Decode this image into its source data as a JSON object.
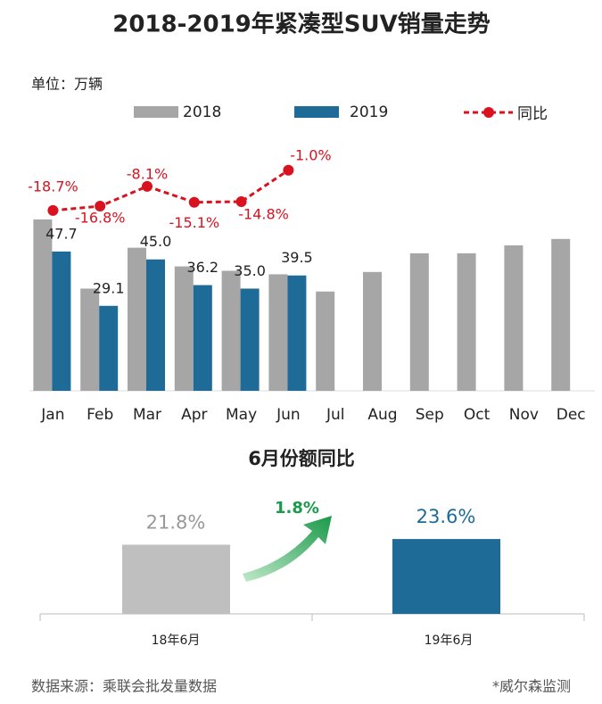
{
  "chart_data": [
    {
      "type": "bar",
      "title": "2018-2019年紧凑型SUV销量走势",
      "subtitle": "单位：万辆",
      "categories": [
        "Jan",
        "Feb",
        "Mar",
        "Apr",
        "May",
        "Jun",
        "Jul",
        "Aug",
        "Sep",
        "Oct",
        "Nov",
        "Dec"
      ],
      "series": [
        {
          "name": "2018",
          "color": "#a6a6a6",
          "values": [
            58.7,
            35.0,
            49.0,
            42.6,
            41.1,
            39.9,
            34.0,
            40.7,
            47.1,
            47.1,
            49.8,
            52.0
          ]
        },
        {
          "name": "2019",
          "color": "#1f6b98",
          "values": [
            47.7,
            29.1,
            45,
            36.2,
            35,
            39.5,
            null,
            null,
            null,
            null,
            null,
            null
          ],
          "value_labels": [
            "47.7",
            "29.1",
            "45.0",
            "36.2",
            "35.0",
            "39.5",
            null,
            null,
            null,
            null,
            null,
            null
          ]
        },
        {
          "name": "同比",
          "type": "line",
          "axis": "y2",
          "color": "#d9121f",
          "values": [
            -18.7,
            -16.8,
            -8.1,
            -15.1,
            -14.8,
            -1.0,
            null,
            null,
            null,
            null,
            null,
            null
          ],
          "value_labels": [
            "-18.7%",
            "-16.8%",
            "-8.1%",
            "-15.1%",
            "-14.8%",
            "-1.0%",
            null,
            null,
            null,
            null,
            null,
            null
          ]
        }
      ],
      "ylim": [
        0,
        88
      ],
      "y2lim": [
        -98,
        15
      ]
    },
    {
      "type": "bar",
      "title": "6月份额同比",
      "categories": [
        "18年6月",
        "19年6月"
      ],
      "values": [
        21.8,
        23.6
      ],
      "value_labels": [
        "21.8%",
        "23.6%"
      ],
      "colors": [
        "#bfbfbf",
        "#1f6b98"
      ],
      "annotation": "1.8%",
      "ylim": [
        0,
        36
      ]
    }
  ],
  "source": "数据来源：乘联会批发量数据",
  "note": "*威尔森监测"
}
